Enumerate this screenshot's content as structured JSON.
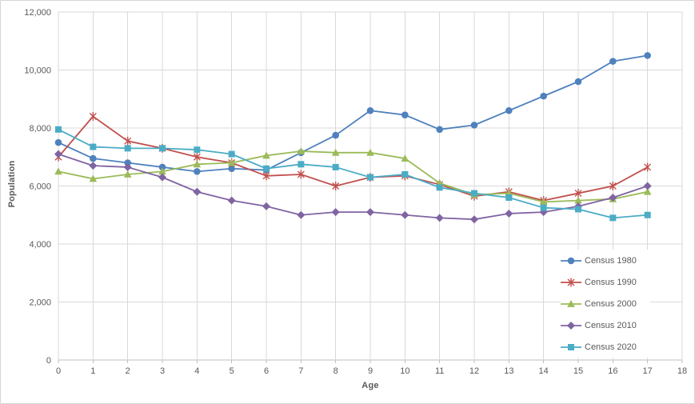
{
  "chart_data": {
    "type": "line",
    "title": "",
    "xlabel": "Age",
    "ylabel": "Population",
    "xlim": [
      0,
      18
    ],
    "ylim": [
      0,
      12000
    ],
    "grid": true,
    "legend_position": "right-lower",
    "x_ticks": [
      "0",
      "1",
      "2",
      "3",
      "4",
      "5",
      "6",
      "7",
      "8",
      "9",
      "10",
      "11",
      "12",
      "13",
      "14",
      "15",
      "16",
      "17",
      "18"
    ],
    "y_ticks": [
      "0",
      "2,000",
      "4,000",
      "6,000",
      "8,000",
      "10,000",
      "12,000"
    ],
    "y_tick_values": [
      0,
      2000,
      4000,
      6000,
      8000,
      10000,
      12000
    ],
    "x": [
      0,
      1,
      2,
      3,
      4,
      5,
      6,
      7,
      8,
      9,
      10,
      11,
      12,
      13,
      14,
      15,
      16,
      17
    ],
    "series": [
      {
        "name": "Census 1980",
        "marker": "circle",
        "color": "#4F81BD",
        "values": [
          7500,
          6950,
          6800,
          6650,
          6500,
          6600,
          6550,
          7150,
          7750,
          8600,
          8450,
          7950,
          8100,
          8600,
          9100,
          9600,
          10300,
          10500
        ]
      },
      {
        "name": "Census 1990",
        "marker": "star",
        "color": "#C0504D",
        "values": [
          7000,
          8400,
          7550,
          7300,
          7000,
          6800,
          6350,
          6400,
          6000,
          6300,
          6350,
          6050,
          5650,
          5800,
          5500,
          5750,
          6000,
          6650
        ]
      },
      {
        "name": "Census 2000",
        "marker": "triangle",
        "color": "#9BBB59",
        "values": [
          6500,
          6250,
          6400,
          6500,
          6750,
          6800,
          7050,
          7200,
          7150,
          7150,
          6950,
          6100,
          5700,
          5750,
          5450,
          5500,
          5550,
          5800
        ]
      },
      {
        "name": "Census 2010",
        "marker": "diamond",
        "color": "#8064A2",
        "values": [
          7100,
          6700,
          6650,
          6300,
          5800,
          5500,
          5300,
          5000,
          5100,
          5100,
          5000,
          4900,
          4850,
          5050,
          5100,
          5300,
          5600,
          6000
        ]
      },
      {
        "name": "Census 2020",
        "marker": "square",
        "color": "#4BACC6",
        "values": [
          7950,
          7350,
          7300,
          7300,
          7250,
          7100,
          6600,
          6750,
          6650,
          6300,
          6400,
          5950,
          5750,
          5600,
          5250,
          5200,
          4900,
          5000
        ]
      }
    ],
    "colors": {
      "gridline": "#D9D9D9",
      "axis_line": "#BFBFBF",
      "tick_label": "#595959",
      "axis_title": "#595959",
      "plot_background": "#FFFFFF"
    }
  }
}
